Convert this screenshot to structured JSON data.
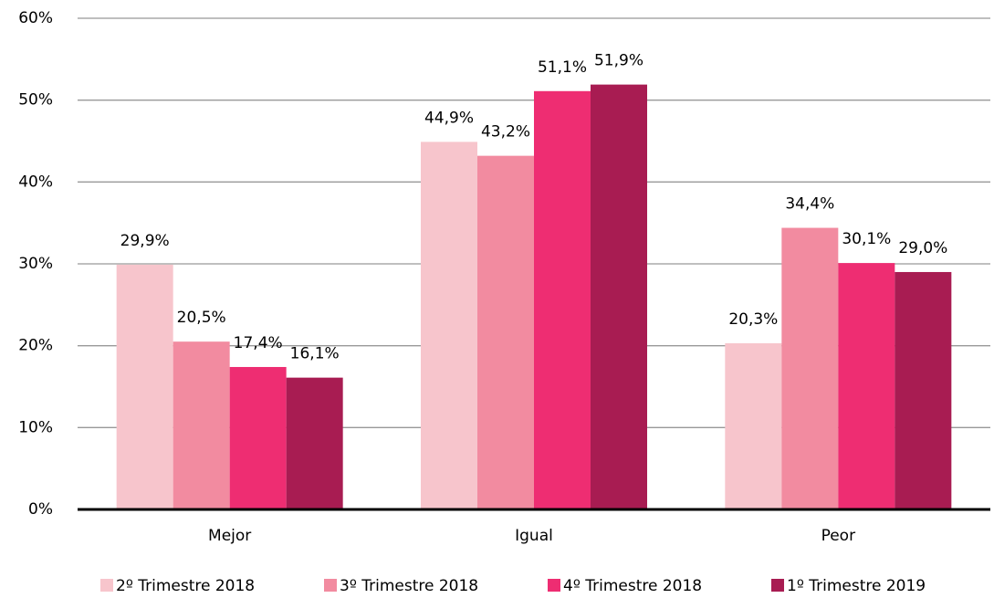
{
  "chart_data": {
    "type": "bar",
    "categories": [
      "Mejor",
      "Igual",
      "Peor"
    ],
    "series": [
      {
        "name": "2º Trimestre 2018",
        "color": "#f7c5cc",
        "values": [
          29.9,
          44.9,
          20.3
        ],
        "value_labels": [
          "29,9%",
          "44,9%",
          "20,3%"
        ]
      },
      {
        "name": "3º Trimestre 2018",
        "color": "#f28ba0",
        "values": [
          20.5,
          43.2,
          34.4
        ],
        "value_labels": [
          "20,5%",
          "43,2%",
          "34,4%"
        ]
      },
      {
        "name": "4º Trimestre 2018",
        "color": "#ee2d72",
        "values": [
          17.4,
          51.1,
          30.1
        ],
        "value_labels": [
          "17,4%",
          "51,1%",
          "30,1%"
        ]
      },
      {
        "name": "1º Trimestre 2019",
        "color": "#a81c52",
        "values": [
          16.1,
          51.9,
          29.0
        ],
        "value_labels": [
          "16,1%",
          "51,9%",
          "29,0%"
        ]
      }
    ],
    "ylim": [
      0,
      60
    ],
    "yticks": [
      {
        "value": 0,
        "label": "0%"
      },
      {
        "value": 10,
        "label": "10%"
      },
      {
        "value": 20,
        "label": "20%"
      },
      {
        "value": 30,
        "label": "30%"
      },
      {
        "value": 40,
        "label": "40%"
      },
      {
        "value": 50,
        "label": "50%"
      },
      {
        "value": 60,
        "label": "60%"
      }
    ],
    "grid": true,
    "legend": "bottom"
  }
}
